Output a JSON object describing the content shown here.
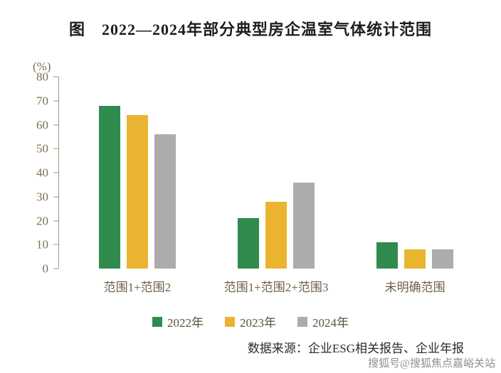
{
  "title": "图　2022—2024年部分典型房企温室气体统计范围",
  "chart_data": {
    "type": "bar",
    "title": "图　2022—2024年部分典型房企温室气体统计范围",
    "unit_label": "(%)",
    "categories": [
      "范围1+范围2",
      "范围1+范围2+范围3",
      "未明确范围"
    ],
    "series": [
      {
        "name": "2022年",
        "color": "#2F8C4E",
        "values": [
          68,
          21,
          11
        ]
      },
      {
        "name": "2023年",
        "color": "#EAB431",
        "values": [
          64,
          28,
          8
        ]
      },
      {
        "name": "2024年",
        "color": "#ACACAC",
        "values": [
          56,
          36,
          8
        ]
      }
    ],
    "ylim": [
      0,
      80
    ],
    "yticks": [
      0,
      10,
      20,
      30,
      40,
      50,
      60,
      70,
      80
    ],
    "grid": false,
    "legend_position": "bottom"
  },
  "source": "数据来源：企业ESG相关报告、企业年报",
  "watermark": "搜狐号@搜狐焦点嘉峪关站"
}
